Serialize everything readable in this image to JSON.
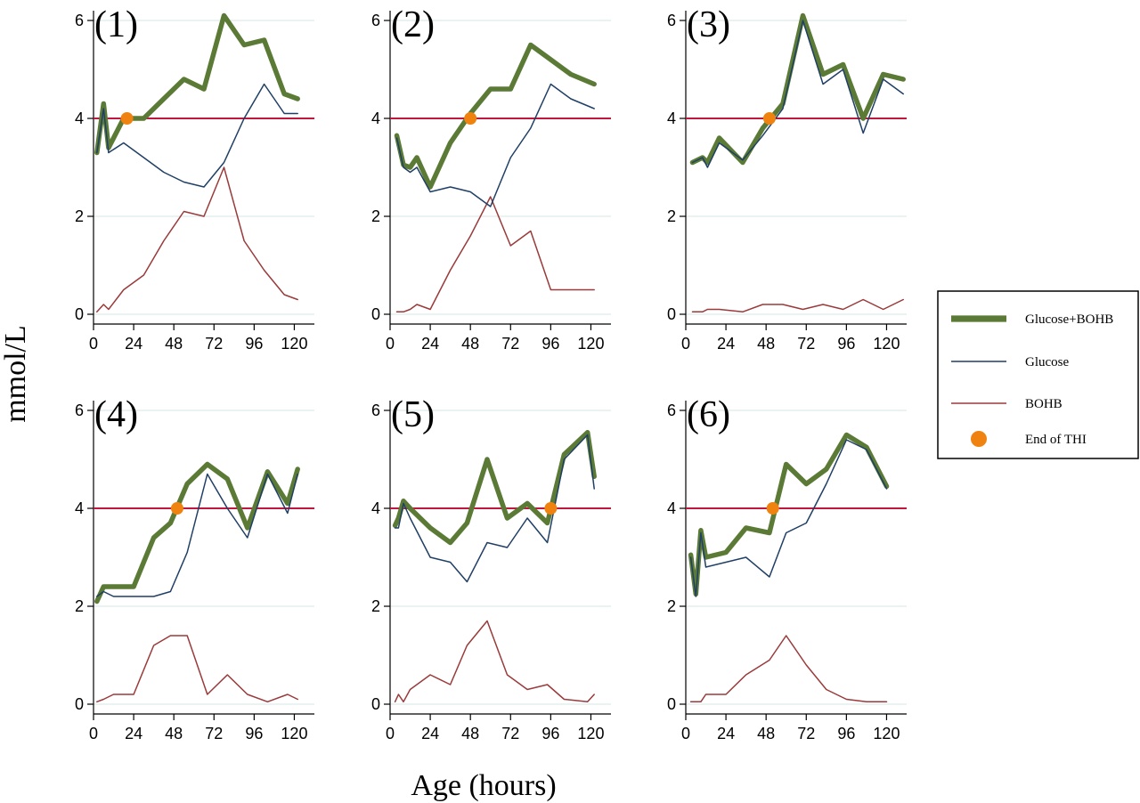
{
  "chart_data": {
    "type": "line",
    "ylabel": "mmol/L",
    "xlabel": "Age (hours)",
    "xlim": [
      0,
      132
    ],
    "ylim": [
      -0.2,
      6.2
    ],
    "xticks": [
      "0",
      "24",
      "48",
      "72",
      "96",
      "120"
    ],
    "yticks": [
      "0",
      "2",
      "4",
      "6"
    ],
    "threshold": 4,
    "grid": "horizontal",
    "legend": {
      "placement": "right",
      "entries": [
        {
          "label": "Glucose+BOHB",
          "key": "sum"
        },
        {
          "label": "Glucose",
          "key": "glucose"
        },
        {
          "label": "BOHB",
          "key": "bohb"
        },
        {
          "label": "End of THI",
          "key": "end"
        }
      ]
    },
    "colors": {
      "sum": "#5a7a35",
      "glucose": "#1f3f66",
      "bohb": "#9a3a3a",
      "threshold": "#c0173f",
      "end": "#f0830f",
      "grid": "#e4eeed"
    },
    "panels": [
      {
        "label": "(1)",
        "end_of_thi": [
          20,
          4
        ],
        "series": [
          {
            "key": "sum",
            "x": [
              2,
              6,
              9,
              18,
              30,
              42,
              54,
              66,
              78,
              90,
              102,
              114,
              122
            ],
            "y": [
              3.3,
              4.3,
              3.4,
              4.0,
              4.0,
              4.4,
              4.8,
              4.6,
              6.1,
              5.5,
              5.6,
              4.5,
              4.4
            ]
          },
          {
            "key": "glucose",
            "x": [
              2,
              6,
              9,
              18,
              30,
              42,
              54,
              66,
              78,
              90,
              102,
              114,
              122
            ],
            "y": [
              3.3,
              4.2,
              3.3,
              3.5,
              3.2,
              2.9,
              2.7,
              2.6,
              3.1,
              4.0,
              4.7,
              4.1,
              4.1
            ]
          },
          {
            "key": "bohb",
            "x": [
              2,
              6,
              9,
              18,
              30,
              42,
              54,
              66,
              78,
              90,
              102,
              114,
              122
            ],
            "y": [
              0.05,
              0.2,
              0.1,
              0.5,
              0.8,
              1.5,
              2.1,
              2.0,
              3.0,
              1.5,
              0.9,
              0.4,
              0.3
            ]
          }
        ]
      },
      {
        "label": "(2)",
        "end_of_thi": [
          48,
          4
        ],
        "series": [
          {
            "key": "sum",
            "x": [
              4,
              8,
              12,
              16,
              24,
              36,
              48,
              60,
              72,
              84,
              96,
              108,
              122
            ],
            "y": [
              3.65,
              3.05,
              3.0,
              3.2,
              2.6,
              3.5,
              4.1,
              4.6,
              4.6,
              5.5,
              5.2,
              4.9,
              4.7
            ]
          },
          {
            "key": "glucose",
            "x": [
              4,
              8,
              12,
              16,
              24,
              36,
              48,
              60,
              72,
              84,
              96,
              108,
              122
            ],
            "y": [
              3.6,
              3.0,
              2.9,
              3.0,
              2.5,
              2.6,
              2.5,
              2.2,
              3.2,
              3.8,
              4.7,
              4.4,
              4.2
            ]
          },
          {
            "key": "bohb",
            "x": [
              4,
              8,
              12,
              16,
              24,
              36,
              48,
              60,
              72,
              84,
              96,
              108,
              122
            ],
            "y": [
              0.05,
              0.05,
              0.1,
              0.2,
              0.1,
              0.9,
              1.6,
              2.4,
              1.4,
              1.7,
              0.5,
              0.5,
              0.5
            ]
          }
        ]
      },
      {
        "label": "(3)",
        "end_of_thi": [
          50,
          4
        ],
        "series": [
          {
            "key": "sum",
            "x": [
              4,
              10,
              13,
              20,
              34,
              46,
              58,
              70,
              82,
              94,
              106,
              118,
              130
            ],
            "y": [
              3.1,
              3.2,
              3.1,
              3.6,
              3.1,
              3.8,
              4.3,
              6.1,
              4.9,
              5.1,
              4.0,
              4.9,
              4.8
            ]
          },
          {
            "key": "glucose",
            "x": [
              4,
              10,
              13,
              20,
              34,
              46,
              58,
              70,
              82,
              94,
              106,
              118,
              130
            ],
            "y": [
              3.1,
              3.2,
              3.0,
              3.5,
              3.15,
              3.65,
              4.2,
              6.0,
              4.7,
              5.0,
              3.7,
              4.8,
              4.5
            ]
          },
          {
            "key": "bohb",
            "x": [
              4,
              10,
              13,
              20,
              34,
              46,
              58,
              70,
              82,
              94,
              106,
              118,
              130
            ],
            "y": [
              0.05,
              0.05,
              0.1,
              0.1,
              0.05,
              0.2,
              0.2,
              0.1,
              0.2,
              0.1,
              0.3,
              0.1,
              0.3
            ]
          }
        ]
      },
      {
        "label": "(4)",
        "end_of_thi": [
          50,
          4
        ],
        "series": [
          {
            "key": "sum",
            "x": [
              2,
              6,
              12,
              24,
              36,
              46,
              56,
              68,
              80,
              92,
              104,
              116,
              122
            ],
            "y": [
              2.1,
              2.4,
              2.4,
              2.4,
              3.4,
              3.7,
              4.5,
              4.9,
              4.6,
              3.6,
              4.75,
              4.1,
              4.8
            ]
          },
          {
            "key": "glucose",
            "x": [
              2,
              6,
              12,
              24,
              36,
              46,
              56,
              68,
              80,
              92,
              104,
              116,
              122
            ],
            "y": [
              2.2,
              2.3,
              2.2,
              2.2,
              2.2,
              2.3,
              3.1,
              4.7,
              4.0,
              3.4,
              4.7,
              3.9,
              4.7
            ]
          },
          {
            "key": "bohb",
            "x": [
              2,
              6,
              12,
              24,
              36,
              46,
              56,
              68,
              80,
              92,
              104,
              116,
              122
            ],
            "y": [
              0.05,
              0.1,
              0.2,
              0.2,
              1.2,
              1.4,
              1.4,
              0.2,
              0.6,
              0.2,
              0.05,
              0.2,
              0.1
            ]
          }
        ]
      },
      {
        "label": "(5)",
        "end_of_thi": [
          96,
          4
        ],
        "series": [
          {
            "key": "sum",
            "x": [
              3,
              5,
              8,
              12,
              24,
              36,
              46,
              58,
              70,
              82,
              94,
              104,
              118,
              122
            ],
            "y": [
              3.65,
              3.8,
              4.15,
              4.0,
              3.6,
              3.3,
              3.7,
              5.0,
              3.8,
              4.1,
              3.7,
              5.1,
              5.55,
              4.65
            ]
          },
          {
            "key": "glucose",
            "x": [
              3,
              5,
              8,
              12,
              24,
              36,
              46,
              58,
              70,
              82,
              94,
              104,
              118,
              122
            ],
            "y": [
              3.6,
              3.6,
              4.1,
              3.8,
              3.0,
              2.9,
              2.5,
              3.3,
              3.2,
              3.8,
              3.3,
              5.0,
              5.5,
              4.4
            ]
          },
          {
            "key": "bohb",
            "x": [
              3,
              5,
              8,
              12,
              24,
              36,
              46,
              58,
              70,
              82,
              94,
              104,
              118,
              122
            ],
            "y": [
              0.05,
              0.2,
              0.05,
              0.3,
              0.6,
              0.4,
              1.2,
              1.7,
              0.6,
              0.3,
              0.4,
              0.1,
              0.05,
              0.2
            ]
          }
        ]
      },
      {
        "label": "(6)",
        "end_of_thi": [
          52,
          4
        ],
        "series": [
          {
            "key": "sum",
            "x": [
              3,
              6,
              9,
              12,
              24,
              36,
              50,
              60,
              72,
              84,
              96,
              108,
              120
            ],
            "y": [
              3.05,
              2.25,
              3.55,
              3.0,
              3.1,
              3.6,
              3.5,
              4.9,
              4.5,
              4.8,
              5.5,
              5.25,
              4.45
            ]
          },
          {
            "key": "glucose",
            "x": [
              3,
              6,
              9,
              12,
              24,
              36,
              50,
              60,
              72,
              84,
              96,
              108,
              120
            ],
            "y": [
              3.0,
              2.2,
              3.5,
              2.8,
              2.9,
              3.0,
              2.6,
              3.5,
              3.7,
              4.5,
              5.4,
              5.2,
              4.4
            ]
          },
          {
            "key": "bohb",
            "x": [
              3,
              6,
              9,
              12,
              24,
              36,
              50,
              60,
              72,
              84,
              96,
              108,
              120
            ],
            "y": [
              0.05,
              0.05,
              0.05,
              0.2,
              0.2,
              0.6,
              0.9,
              1.4,
              0.8,
              0.3,
              0.1,
              0.05,
              0.05
            ]
          }
        ]
      }
    ]
  }
}
